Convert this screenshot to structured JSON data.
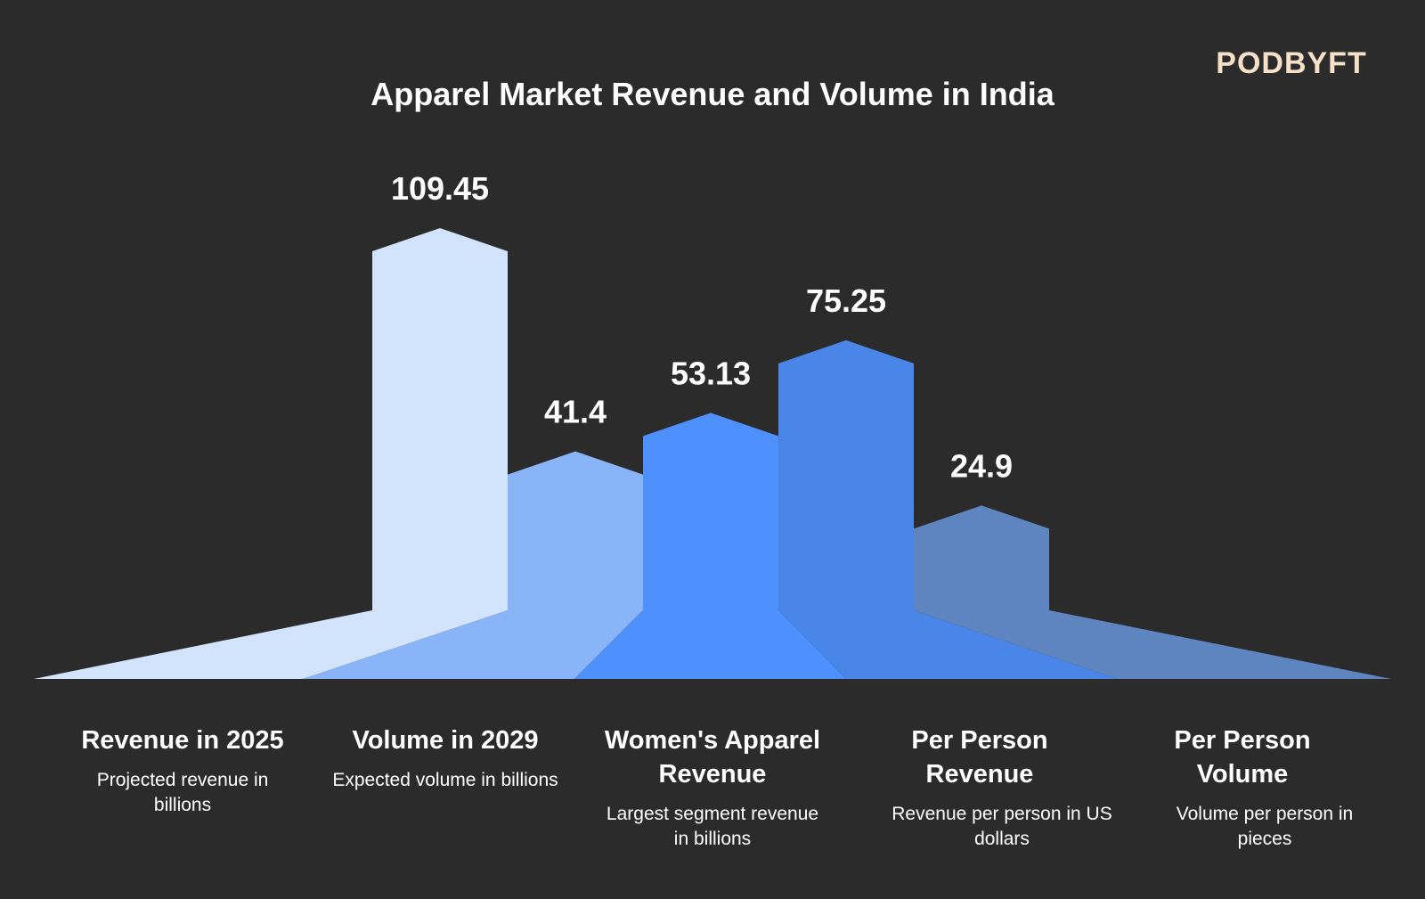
{
  "logo": {
    "text": "PODBYFT"
  },
  "chart_data": {
    "type": "bar",
    "title": "Apparel Market Revenue and Volume in India",
    "categories": [
      "Revenue in 2025",
      "Volume in 2029",
      "Women's Apparel Revenue",
      "Per Person Revenue",
      "Per Person Volume"
    ],
    "descriptions": [
      "Projected revenue in billions",
      "Expected volume in billions",
      "Largest segment revenue in billions",
      "Revenue per person in US dollars",
      "Volume per person in pieces"
    ],
    "values": [
      109.45,
      41.4,
      53.13,
      75.25,
      24.9
    ],
    "value_labels": [
      "109.45",
      "41.4",
      "53.13",
      "75.25",
      "24.9"
    ],
    "colors": [
      "#d2e3fc",
      "#8ab4f8",
      "#4d90fe",
      "#4a86e8",
      "#5f85c1"
    ],
    "grid": false,
    "legend": "none"
  }
}
